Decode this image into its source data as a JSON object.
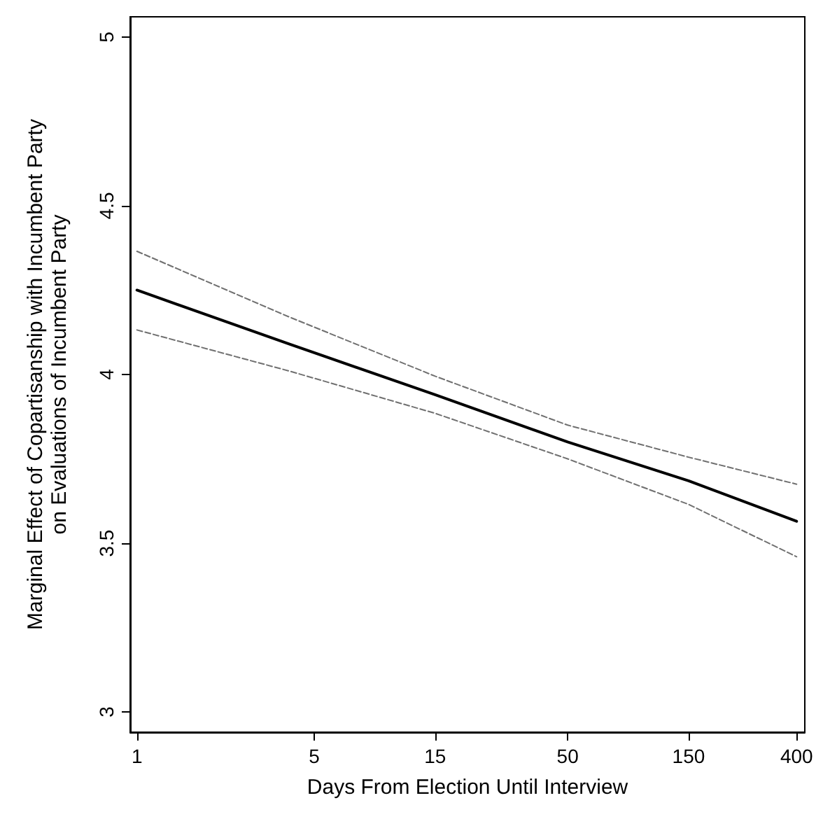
{
  "chart_data": {
    "type": "line",
    "xlabel": "Days From Election Until Interview",
    "ylabel": "Marginal Effect of Copartisanship with Incumbent Party\non Evaluations of Incumbent Party",
    "log": "x",
    "xlim": [
      0.94,
      431
    ],
    "xticks": [
      1,
      5,
      15,
      50,
      150,
      400
    ],
    "ylim": [
      2.94,
      5.06
    ],
    "yticks": [
      3,
      3.5,
      4,
      4.5,
      5
    ],
    "grid": false,
    "marker": "none",
    "series": [
      {
        "color": "#000000",
        "line_style": "solid",
        "x": [
          1,
          4,
          15,
          50,
          150,
          400
        ],
        "values": [
          4.25,
          4.09,
          3.94,
          3.8,
          3.685,
          3.565
        ]
      },
      {
        "color": "#707070",
        "line_style": "dashed",
        "x": [
          1,
          4,
          15,
          50,
          150,
          400
        ],
        "values": [
          4.132,
          4.01,
          3.885,
          3.75,
          3.615,
          3.46
        ]
      },
      {
        "color": "#707070",
        "line_style": "dashed",
        "x": [
          1,
          4,
          15,
          50,
          150,
          400
        ],
        "values": [
          4.365,
          4.17,
          3.995,
          3.85,
          3.755,
          3.675
        ]
      }
    ]
  }
}
